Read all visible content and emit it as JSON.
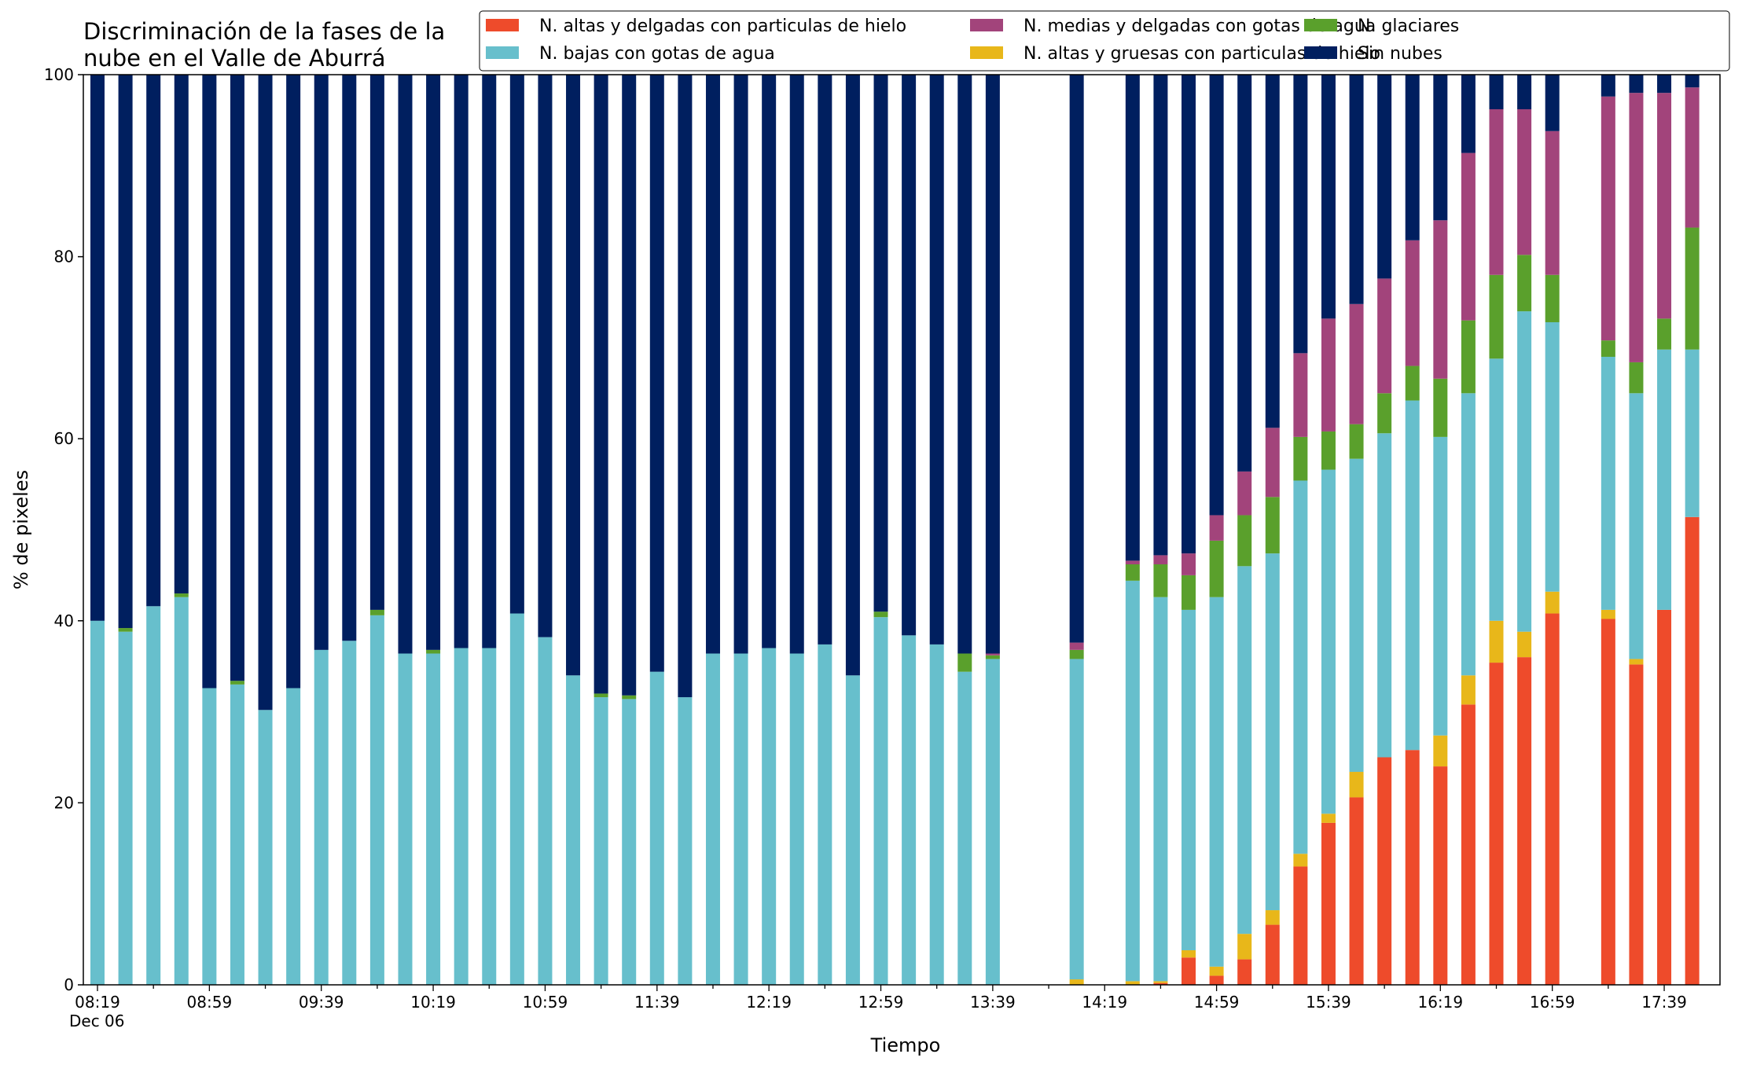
{
  "chart_data": {
    "type": "bar",
    "stacked": true,
    "title_lines": [
      "Discriminación de la fases de la",
      "nube en el Valle de Aburrá"
    ],
    "xlabel": "Tiempo",
    "ylabel": "% de pixeles",
    "ylim": [
      0,
      100
    ],
    "yticks": [
      0,
      20,
      40,
      60,
      80,
      100
    ],
    "x_time_start": "08:19",
    "x_step_minutes": 10,
    "x_date_label": "Dec 06",
    "xtick_labels": [
      "08:19",
      "08:59",
      "09:39",
      "10:19",
      "10:59",
      "11:39",
      "12:19",
      "12:59",
      "13:39",
      "14:19",
      "14:59",
      "15:39",
      "16:19",
      "16:59",
      "17:39"
    ],
    "legend_position": "top-right",
    "legend_order": [
      "ah",
      "bl",
      "md",
      "ag",
      "gl",
      "sn"
    ],
    "series": [
      {
        "key": "ah",
        "name": "N. altas y delgadas con particulas de hielo",
        "color": "#ee4b2b"
      },
      {
        "key": "ag",
        "name": "N. altas y gruesas con particulas de hielo",
        "color": "#e8b71a"
      },
      {
        "key": "bl",
        "name": "N. bajas con gotas de agua",
        "color": "#67bfcc"
      },
      {
        "key": "gl",
        "name": "N. glaciares",
        "color": "#5aa02c"
      },
      {
        "key": "md",
        "name": "N. medias y delgadas con gotas de agua",
        "color": "#a2447b"
      },
      {
        "key": "sn",
        "name": "Sin nubes",
        "color": "#001f5f"
      }
    ],
    "bars": [
      {
        "time": "08:19",
        "ah": 0,
        "ag": 0,
        "bl": 40.0,
        "gl": 0,
        "md": 0,
        "sn": 60.0
      },
      {
        "time": "08:29",
        "ah": 0,
        "ag": 0,
        "bl": 38.8,
        "gl": 0.4,
        "md": 0,
        "sn": 60.8
      },
      {
        "time": "08:39",
        "ah": 0,
        "ag": 0,
        "bl": 41.6,
        "gl": 0,
        "md": 0,
        "sn": 58.4
      },
      {
        "time": "08:49",
        "ah": 0,
        "ag": 0,
        "bl": 42.6,
        "gl": 0.4,
        "md": 0,
        "sn": 57.0
      },
      {
        "time": "08:59",
        "ah": 0,
        "ag": 0,
        "bl": 32.6,
        "gl": 0,
        "md": 0,
        "sn": 67.4
      },
      {
        "time": "09:09",
        "ah": 0,
        "ag": 0,
        "bl": 33.0,
        "gl": 0.4,
        "md": 0,
        "sn": 66.6
      },
      {
        "time": "09:19",
        "ah": 0,
        "ag": 0,
        "bl": 30.2,
        "gl": 0,
        "md": 0,
        "sn": 69.8
      },
      {
        "time": "09:29",
        "ah": 0,
        "ag": 0,
        "bl": 32.6,
        "gl": 0,
        "md": 0,
        "sn": 67.4
      },
      {
        "time": "09:39",
        "ah": 0,
        "ag": 0,
        "bl": 36.8,
        "gl": 0,
        "md": 0,
        "sn": 63.2
      },
      {
        "time": "09:49",
        "ah": 0,
        "ag": 0,
        "bl": 37.8,
        "gl": 0,
        "md": 0,
        "sn": 62.2
      },
      {
        "time": "09:59",
        "ah": 0,
        "ag": 0,
        "bl": 40.6,
        "gl": 0.6,
        "md": 0,
        "sn": 58.8
      },
      {
        "time": "10:09",
        "ah": 0,
        "ag": 0,
        "bl": 36.4,
        "gl": 0,
        "md": 0,
        "sn": 63.6
      },
      {
        "time": "10:19",
        "ah": 0,
        "ag": 0,
        "bl": 36.4,
        "gl": 0.4,
        "md": 0,
        "sn": 63.2
      },
      {
        "time": "10:29",
        "ah": 0,
        "ag": 0,
        "bl": 37.0,
        "gl": 0,
        "md": 0,
        "sn": 63.0
      },
      {
        "time": "10:39",
        "ah": 0,
        "ag": 0,
        "bl": 37.0,
        "gl": 0,
        "md": 0,
        "sn": 63.0
      },
      {
        "time": "10:49",
        "ah": 0,
        "ag": 0,
        "bl": 40.8,
        "gl": 0,
        "md": 0,
        "sn": 59.2
      },
      {
        "time": "10:59",
        "ah": 0,
        "ag": 0,
        "bl": 38.2,
        "gl": 0,
        "md": 0,
        "sn": 61.8
      },
      {
        "time": "11:09",
        "ah": 0,
        "ag": 0,
        "bl": 34.0,
        "gl": 0,
        "md": 0,
        "sn": 66.0
      },
      {
        "time": "11:19",
        "ah": 0,
        "ag": 0,
        "bl": 31.6,
        "gl": 0.4,
        "md": 0,
        "sn": 68.0
      },
      {
        "time": "11:29",
        "ah": 0,
        "ag": 0,
        "bl": 31.4,
        "gl": 0.4,
        "md": 0,
        "sn": 68.2
      },
      {
        "time": "11:39",
        "ah": 0,
        "ag": 0,
        "bl": 34.4,
        "gl": 0,
        "md": 0,
        "sn": 65.6
      },
      {
        "time": "11:49",
        "ah": 0,
        "ag": 0,
        "bl": 31.6,
        "gl": 0,
        "md": 0,
        "sn": 68.4
      },
      {
        "time": "11:59",
        "ah": 0,
        "ag": 0,
        "bl": 36.4,
        "gl": 0,
        "md": 0,
        "sn": 63.6
      },
      {
        "time": "12:09",
        "ah": 0,
        "ag": 0,
        "bl": 36.4,
        "gl": 0,
        "md": 0,
        "sn": 63.6
      },
      {
        "time": "12:19",
        "ah": 0,
        "ag": 0,
        "bl": 37.0,
        "gl": 0,
        "md": 0,
        "sn": 63.0
      },
      {
        "time": "12:29",
        "ah": 0,
        "ag": 0,
        "bl": 36.4,
        "gl": 0,
        "md": 0,
        "sn": 63.6
      },
      {
        "time": "12:39",
        "ah": 0,
        "ag": 0,
        "bl": 37.4,
        "gl": 0,
        "md": 0,
        "sn": 62.6
      },
      {
        "time": "12:49",
        "ah": 0,
        "ag": 0,
        "bl": 34.0,
        "gl": 0,
        "md": 0,
        "sn": 66.0
      },
      {
        "time": "12:59",
        "ah": 0,
        "ag": 0,
        "bl": 40.4,
        "gl": 0.6,
        "md": 0,
        "sn": 59.0
      },
      {
        "time": "13:09",
        "ah": 0,
        "ag": 0,
        "bl": 38.4,
        "gl": 0,
        "md": 0,
        "sn": 61.6
      },
      {
        "time": "13:19",
        "ah": 0,
        "ag": 0,
        "bl": 37.4,
        "gl": 0,
        "md": 0,
        "sn": 62.6
      },
      {
        "time": "13:29",
        "ah": 0,
        "ag": 0,
        "bl": 34.4,
        "gl": 2.0,
        "md": 0,
        "sn": 63.6
      },
      {
        "time": "13:39",
        "ah": 0,
        "ag": 0,
        "bl": 35.8,
        "gl": 0.4,
        "md": 0.2,
        "sn": 63.6
      },
      {
        "time": "14:09",
        "ah": 0,
        "ag": 0.6,
        "bl": 35.2,
        "gl": 1.0,
        "md": 0.8,
        "sn": 62.4
      },
      {
        "time": "14:29",
        "ah": 0,
        "ag": 0.4,
        "bl": 44.0,
        "gl": 1.8,
        "md": 0.4,
        "sn": 53.4
      },
      {
        "time": "14:39",
        "ah": 0.2,
        "ag": 0.2,
        "bl": 42.2,
        "gl": 3.6,
        "md": 1.0,
        "sn": 52.8
      },
      {
        "time": "14:49",
        "ah": 3.0,
        "ag": 0.8,
        "bl": 37.4,
        "gl": 3.8,
        "md": 2.4,
        "sn": 52.6
      },
      {
        "time": "14:59",
        "ah": 1.0,
        "ag": 1.0,
        "bl": 40.6,
        "gl": 6.2,
        "md": 2.8,
        "sn": 48.4
      },
      {
        "time": "15:09",
        "ah": 2.8,
        "ag": 2.8,
        "bl": 40.4,
        "gl": 5.6,
        "md": 4.8,
        "sn": 43.6
      },
      {
        "time": "15:19",
        "ah": 6.6,
        "ag": 1.6,
        "bl": 39.2,
        "gl": 6.2,
        "md": 7.6,
        "sn": 38.8
      },
      {
        "time": "15:29",
        "ah": 13.0,
        "ag": 1.4,
        "bl": 41.0,
        "gl": 4.8,
        "md": 9.2,
        "sn": 30.6
      },
      {
        "time": "15:39",
        "ah": 17.8,
        "ag": 1.0,
        "bl": 37.8,
        "gl": 4.2,
        "md": 12.4,
        "sn": 26.8
      },
      {
        "time": "15:49",
        "ah": 20.6,
        "ag": 2.8,
        "bl": 34.4,
        "gl": 3.8,
        "md": 13.2,
        "sn": 25.2
      },
      {
        "time": "15:59",
        "ah": 25.0,
        "ag": 0,
        "bl": 35.6,
        "gl": 4.4,
        "md": 12.6,
        "sn": 22.4
      },
      {
        "time": "16:09",
        "ah": 25.8,
        "ag": 0,
        "bl": 38.4,
        "gl": 3.8,
        "md": 13.8,
        "sn": 18.2
      },
      {
        "time": "16:19",
        "ah": 24.0,
        "ag": 3.4,
        "bl": 32.8,
        "gl": 6.4,
        "md": 17.4,
        "sn": 16.0
      },
      {
        "time": "16:29",
        "ah": 30.8,
        "ag": 3.2,
        "bl": 31.0,
        "gl": 8.0,
        "md": 18.4,
        "sn": 8.6
      },
      {
        "time": "16:39",
        "ah": 35.4,
        "ag": 4.6,
        "bl": 28.8,
        "gl": 9.2,
        "md": 18.2,
        "sn": 3.8
      },
      {
        "time": "16:49",
        "ah": 36.0,
        "ag": 2.8,
        "bl": 35.2,
        "gl": 6.2,
        "md": 16.0,
        "sn": 3.8
      },
      {
        "time": "16:59",
        "ah": 40.8,
        "ag": 2.4,
        "bl": 29.6,
        "gl": 5.2,
        "md": 15.8,
        "sn": 6.2
      },
      {
        "time": "17:19",
        "ah": 40.2,
        "ag": 1.0,
        "bl": 27.8,
        "gl": 1.8,
        "md": 26.8,
        "sn": 2.4
      },
      {
        "time": "17:29",
        "ah": 35.2,
        "ag": 0.6,
        "bl": 29.2,
        "gl": 3.4,
        "md": 29.6,
        "sn": 2.0
      },
      {
        "time": "17:39",
        "ah": 41.2,
        "ag": 0,
        "bl": 28.6,
        "gl": 3.4,
        "md": 24.8,
        "sn": 2.0
      },
      {
        "time": "17:49",
        "ah": 51.4,
        "ag": 0,
        "bl": 18.4,
        "gl": 13.4,
        "md": 15.4,
        "sn": 1.4
      }
    ]
  }
}
